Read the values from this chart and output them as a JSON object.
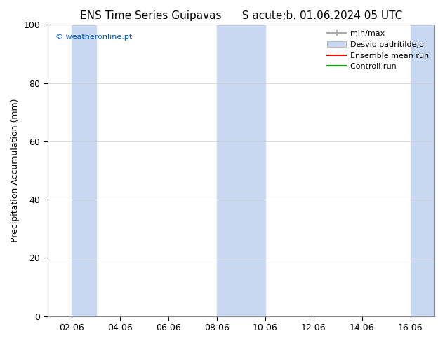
{
  "title": "ENS Time Series Guipavas      S acute;b. 01.06.2024 05 UTC",
  "ylabel": "Precipitation Accumulation (mm)",
  "ylim": [
    0,
    100
  ],
  "yticks": [
    0,
    20,
    40,
    60,
    80,
    100
  ],
  "xlabel": "",
  "background_color": "#ffffff",
  "plot_bg_color": "#ffffff",
  "watermark_text": "© weatheronline.pt",
  "watermark_color": "#0055cc",
  "shaded_bands": [
    {
      "x_start": 1.0,
      "x_end": 2.0,
      "color": "#c8d8f0"
    },
    {
      "x_start": 7.0,
      "x_end": 9.0,
      "color": "#c8d8f0"
    },
    {
      "x_start": 15.0,
      "x_end": 16.0,
      "color": "#c8d8f0"
    }
  ],
  "xtick_labels": [
    "02.06",
    "04.06",
    "06.06",
    "08.06",
    "10.06",
    "12.06",
    "14.06",
    "16.06"
  ],
  "xtick_positions": [
    1,
    3,
    5,
    7,
    9,
    11,
    13,
    15
  ],
  "xlim": [
    0,
    16
  ],
  "legend_entries": [
    {
      "label": "min/max",
      "color": "#aaaaaa",
      "lw": 1.5,
      "style": "line_with_caps"
    },
    {
      "label": "Desvio padrítilde;o",
      "color": "#c8d8f0",
      "lw": 6,
      "style": "band"
    },
    {
      "label": "Ensemble mean run",
      "color": "#ff0000",
      "lw": 1.5,
      "style": "line"
    },
    {
      "label": "Controll run",
      "color": "#00aa00",
      "lw": 1.5,
      "style": "line"
    }
  ],
  "title_fontsize": 11,
  "tick_fontsize": 9,
  "label_fontsize": 9,
  "legend_fontsize": 8
}
